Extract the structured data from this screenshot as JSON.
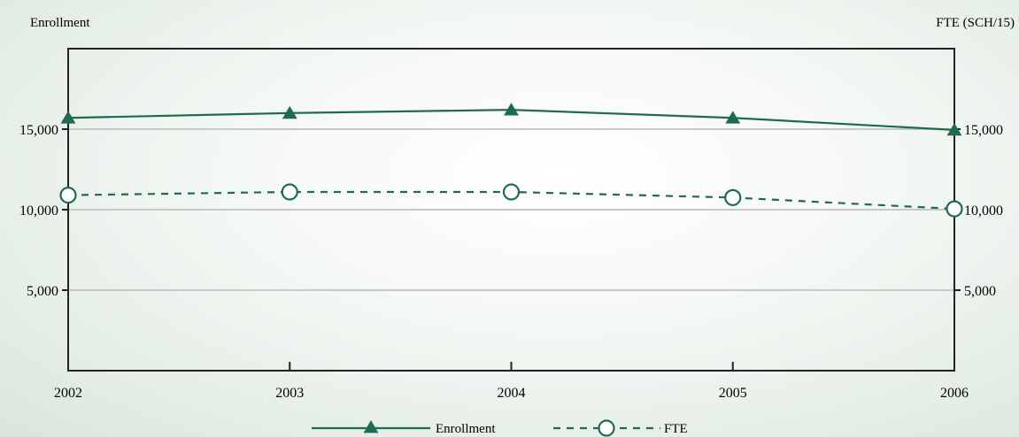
{
  "chart_data": {
    "type": "line",
    "x": [
      "2002",
      "2003",
      "2004",
      "2005",
      "2006"
    ],
    "ylabel_left": "Enrollment",
    "ylabel_right": "FTE (SCH/15)",
    "ylim": [
      0,
      20000
    ],
    "yticks": [
      "5,000",
      "10,000",
      "15,000"
    ],
    "ytick_values": [
      5000,
      10000,
      15000
    ],
    "grid": true,
    "legend_placement": "bottom-center",
    "series": [
      {
        "name": "Enrollment",
        "values": [
          15700,
          16000,
          16200,
          15700,
          14950
        ],
        "marker": "filled-triangle",
        "line": "solid",
        "color": "#1d6b50"
      },
      {
        "name": "FTE",
        "values": [
          10900,
          11100,
          11100,
          10750,
          10050
        ],
        "marker": "open-circle",
        "line": "dashed",
        "color": "#1d6b50"
      }
    ]
  }
}
